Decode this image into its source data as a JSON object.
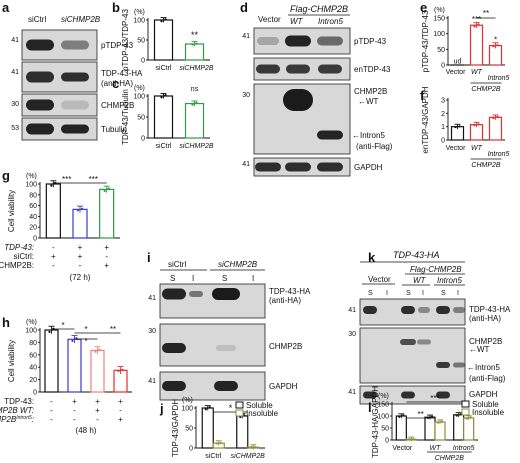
{
  "panels": {
    "a": {
      "letter": "a",
      "lanes": [
        "siCtrl",
        "siCHMP2B"
      ],
      "blots": [
        {
          "label": "pTDP-43",
          "mw": "41",
          "bands": [
            0.9,
            0.45
          ]
        },
        {
          "label": "TDP-43-HA",
          "label2": "(anti-HA)",
          "mw": "41",
          "bands": [
            0.85,
            0.85
          ]
        },
        {
          "label": "CHMP2B",
          "mw": "30",
          "bands": [
            0.9,
            0.15
          ]
        },
        {
          "label": "Tubulin",
          "mw": "53",
          "bands": [
            0.9,
            0.9
          ]
        }
      ]
    },
    "b": {
      "letter": "b",
      "ylabel": "pTDP-43/TDP-43",
      "unit": "(%)",
      "ticks": [
        "0",
        "50",
        "100"
      ],
      "cats": [
        "siCtrl",
        "siCHMP2B"
      ],
      "sig": "**"
    },
    "c": {
      "letter": "c",
      "ylabel": "TDP-43/Tubulin",
      "unit": "(%)",
      "ticks": [
        "0",
        "50",
        "100"
      ],
      "cats": [
        "siCtrl",
        "siCHMP2B"
      ],
      "sig": "ns"
    },
    "d": {
      "letter": "d",
      "header": "Flag-CHMP2B",
      "lanes": [
        "Vector",
        "WT",
        "Intron5"
      ],
      "blots": [
        {
          "label": "pTDP-43",
          "mw": "41"
        },
        {
          "label": "enTDP-43"
        },
        {
          "label": "CHMP2B",
          "mw": "30",
          "wt": "←WT",
          "intron": "←Intron5",
          "anti": "(anti-Flag)"
        },
        {
          "label": "GAPDH",
          "mw": "41"
        }
      ]
    },
    "e": {
      "letter": "e",
      "ylabel": "pTDP-43/TDP-43",
      "unit": "(%)",
      "ticks": [
        "0",
        "50",
        "100",
        "150"
      ],
      "cats": [
        "Vector",
        "WT",
        "Intron5"
      ],
      "group": "CHMP2B",
      "sig1": "***",
      "sig2": "*",
      "sig3": "**",
      "ud": "ud"
    },
    "f": {
      "letter": "f",
      "ylabel": "enTDP-43/GAPDH",
      "ticks": [
        "0",
        "1",
        "2",
        "3"
      ],
      "cats": [
        "Vector",
        "WT",
        "Intron5"
      ],
      "group": "CHMP2B"
    },
    "g": {
      "letter": "g",
      "ylabel": "Cell viability",
      "unit": "(%)",
      "ticks": [
        "0",
        "20",
        "40",
        "60",
        "80",
        "100"
      ],
      "rows": [
        {
          "label": "TDP-43:",
          "vals": [
            "-",
            "+",
            "+"
          ]
        },
        {
          "label": "siCtrl:",
          "vals": [
            "+",
            "+",
            "-"
          ]
        },
        {
          "label": "siCHMP2B:",
          "vals": [
            "-",
            "-",
            "+"
          ]
        }
      ],
      "time": "(72 h)",
      "sig1": "***",
      "sig2": "***"
    },
    "h": {
      "letter": "h",
      "ylabel": "Cell viability",
      "unit": "(%)",
      "ticks": [
        "0",
        "20",
        "40",
        "60",
        "80",
        "100"
      ],
      "rows": [
        {
          "label": "TDP-43:",
          "vals": [
            "-",
            "+",
            "+",
            "+"
          ]
        },
        {
          "label": "CHMP2B WT:",
          "vals": [
            "-",
            "-",
            "+",
            "-"
          ]
        },
        {
          "label": "CHMP2B",
          "sup": "Intron5",
          "vals": [
            "-",
            "-",
            "-",
            "+"
          ]
        }
      ],
      "time": "(48 h)",
      "sig": [
        "*",
        "*",
        "*",
        "**"
      ]
    },
    "i": {
      "letter": "i",
      "groups": [
        "siCtrl",
        "siCHMP2B"
      ],
      "fractions": [
        "S",
        "I",
        "S",
        "I"
      ],
      "blots": [
        {
          "label": "TDP-43-HA",
          "label2": "(anti-HA)",
          "mw": "41"
        },
        {
          "label": "CHMP2B",
          "mw": "30"
        },
        {
          "label": "GAPDH",
          "mw": "41"
        }
      ]
    },
    "j": {
      "letter": "j",
      "ylabel": "TDP-43/GAPDH",
      "unit": "(%)",
      "ticks": [
        "0",
        "50",
        "100"
      ],
      "cats": [
        "siCtrl",
        "siCHMP2B"
      ],
      "legend": [
        "Soluble",
        "Insoluble"
      ],
      "sig": "*"
    },
    "k": {
      "letter": "k",
      "title": "TDP-43-HA",
      "header": "Flag-CHMP2B",
      "groups": [
        "Vector",
        "WT",
        "Intron5"
      ],
      "fractions": [
        "S",
        "I",
        "S",
        "I",
        "S",
        "I"
      ],
      "blots": [
        {
          "label": "TDP-43-HA",
          "label2": "(anti-HA)",
          "mw": "41"
        },
        {
          "label": "CHMP2B",
          "mw": "30",
          "wt": "←WT",
          "intron": "←Intron5",
          "anti": "(anti-Flag)"
        },
        {
          "label": "GAPDH",
          "mw": "41"
        }
      ]
    },
    "l": {
      "letter": "l",
      "ylabel": "TDP-43-HA/GAPDH",
      "unit": "(%)",
      "ticks": [
        "0",
        "50",
        "100",
        "150"
      ],
      "cats": [
        "Vector",
        "WT",
        "Intron5"
      ],
      "group": "CHMP2B",
      "legend": [
        "Soluble",
        "Insoluble"
      ],
      "sig": [
        "**",
        "***"
      ]
    }
  },
  "chart_data": [
    {
      "panel": "b",
      "type": "bar",
      "categories": [
        "siCtrl",
        "siCHMP2B"
      ],
      "values": [
        100,
        40
      ],
      "ylabel": "pTDP-43/TDP-43",
      "ylim": [
        0,
        100
      ],
      "colors": [
        "#111111",
        "#2e9a45"
      ]
    },
    {
      "panel": "c",
      "type": "bar",
      "categories": [
        "siCtrl",
        "siCHMP2B"
      ],
      "values": [
        100,
        82
      ],
      "ylabel": "TDP-43/Tubulin",
      "ylim": [
        0,
        100
      ],
      "colors": [
        "#111111",
        "#2e9a45"
      ]
    },
    {
      "panel": "e",
      "type": "bar",
      "categories": [
        "Vector",
        "WT",
        "Intron5"
      ],
      "values": [
        0,
        127,
        62
      ],
      "ylabel": "pTDP-43/TDP-43",
      "ylim": [
        0,
        150
      ],
      "colors": [
        "#111111",
        "#e03030",
        "#e03030"
      ]
    },
    {
      "panel": "f",
      "type": "bar",
      "categories": [
        "Vector",
        "WT",
        "Intron5"
      ],
      "values": [
        1.0,
        1.15,
        1.7
      ],
      "ylabel": "enTDP-43/GAPDH",
      "ylim": [
        0,
        3
      ],
      "colors": [
        "#111111",
        "#e03030",
        "#e03030"
      ]
    },
    {
      "panel": "g",
      "type": "bar",
      "categories": [
        "1",
        "2",
        "3"
      ],
      "values": [
        100,
        53,
        90
      ],
      "ylabel": "Cell viability",
      "ylim": [
        0,
        100
      ],
      "colors": [
        "#111111",
        "#3a3ad0",
        "#2e9a45"
      ]
    },
    {
      "panel": "h",
      "type": "bar",
      "categories": [
        "1",
        "2",
        "3",
        "4"
      ],
      "values": [
        100,
        85,
        67,
        35
      ],
      "ylabel": "Cell viability",
      "ylim": [
        0,
        100
      ],
      "colors": [
        "#111111",
        "#3a3ad0",
        "#f08080",
        "#e03030"
      ]
    },
    {
      "panel": "j",
      "type": "bar",
      "categories": [
        "siCtrl",
        "siCHMP2B"
      ],
      "series": [
        {
          "name": "Soluble",
          "values": [
            100,
            80
          ]
        },
        {
          "name": "Insoluble",
          "values": [
            12,
            2
          ]
        }
      ],
      "ylabel": "TDP-43/GAPDH",
      "ylim": [
        0,
        100
      ],
      "colors": [
        "#111111",
        "#8c8c3c"
      ]
    },
    {
      "panel": "l",
      "type": "bar",
      "categories": [
        "Vector",
        "WT",
        "Intron5"
      ],
      "series": [
        {
          "name": "Soluble",
          "values": [
            100,
            95,
            105
          ]
        },
        {
          "name": "Insoluble",
          "values": [
            3,
            75,
            92
          ]
        }
      ],
      "ylabel": "TDP-43-HA/GAPDH",
      "ylim": [
        0,
        150
      ],
      "colors": [
        "#111111",
        "#8c8c3c"
      ]
    }
  ]
}
